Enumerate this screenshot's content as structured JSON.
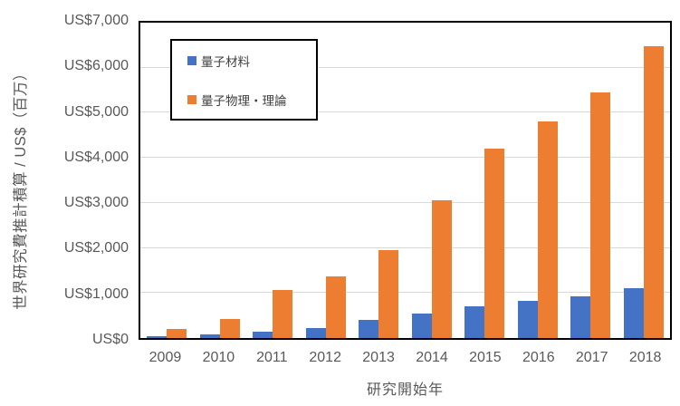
{
  "chart_data": {
    "type": "bar",
    "title": "",
    "categories": [
      "2009",
      "2010",
      "2011",
      "2012",
      "2013",
      "2014",
      "2015",
      "2016",
      "2017",
      "2018"
    ],
    "series": [
      {
        "name": "量子材料",
        "color": "#4472C4",
        "values": [
          50,
          80,
          150,
          220,
          400,
          540,
          700,
          830,
          930,
          1100
        ]
      },
      {
        "name": "量子物理・理論",
        "color": "#ED7D31",
        "values": [
          210,
          430,
          1070,
          1370,
          1950,
          3050,
          4200,
          4800,
          5450,
          6480
        ]
      }
    ],
    "xlabel": "研究開始年",
    "ylabel": "世界研究費推計積算 / US$（百万）",
    "ylim": [
      0,
      7000
    ],
    "ytick_step": 1000,
    "ytick_labels": [
      "US$0",
      "US$1,000",
      "US$2,000",
      "US$3,000",
      "US$4,000",
      "US$5,000",
      "US$6,000",
      "US$7,000"
    ],
    "grid": "horizontal",
    "legend_position": "top-left-inside",
    "colors": {
      "grid": "#D9D9D9",
      "axis_text": "#595959",
      "legend_text": "#404040",
      "plot_border": "#000000",
      "background": "#FFFFFF"
    }
  }
}
